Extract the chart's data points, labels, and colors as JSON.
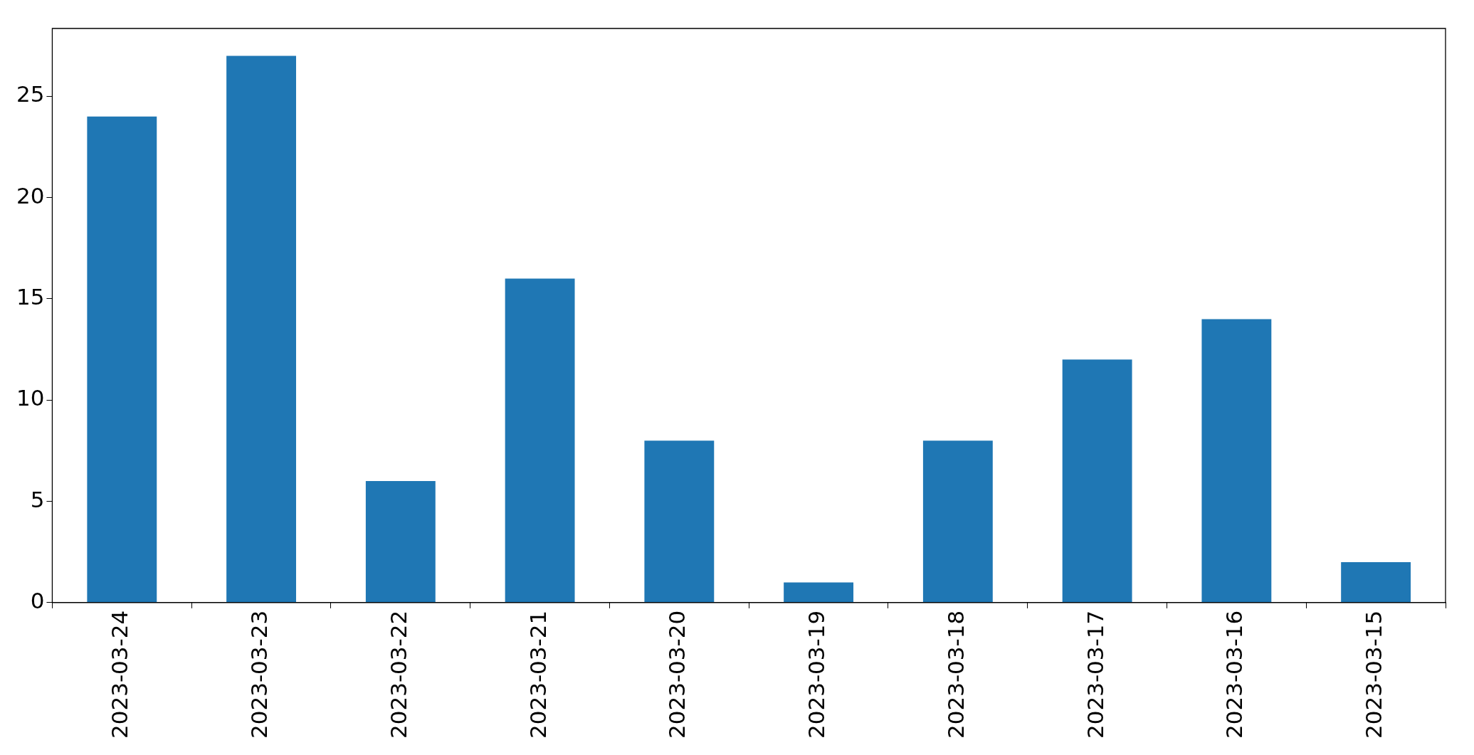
{
  "chart_data": {
    "type": "bar",
    "categories": [
      "2023-03-24",
      "2023-03-23",
      "2023-03-22",
      "2023-03-21",
      "2023-03-20",
      "2023-03-19",
      "2023-03-18",
      "2023-03-17",
      "2023-03-16",
      "2023-03-15"
    ],
    "values": [
      24,
      27,
      6,
      16,
      8,
      1,
      8,
      12,
      14,
      2
    ],
    "color": "#1f77b4",
    "ylim": [
      0,
      28.35
    ],
    "yticks": [
      0,
      5,
      10,
      15,
      20,
      25
    ],
    "grid": false,
    "legend": false
  }
}
